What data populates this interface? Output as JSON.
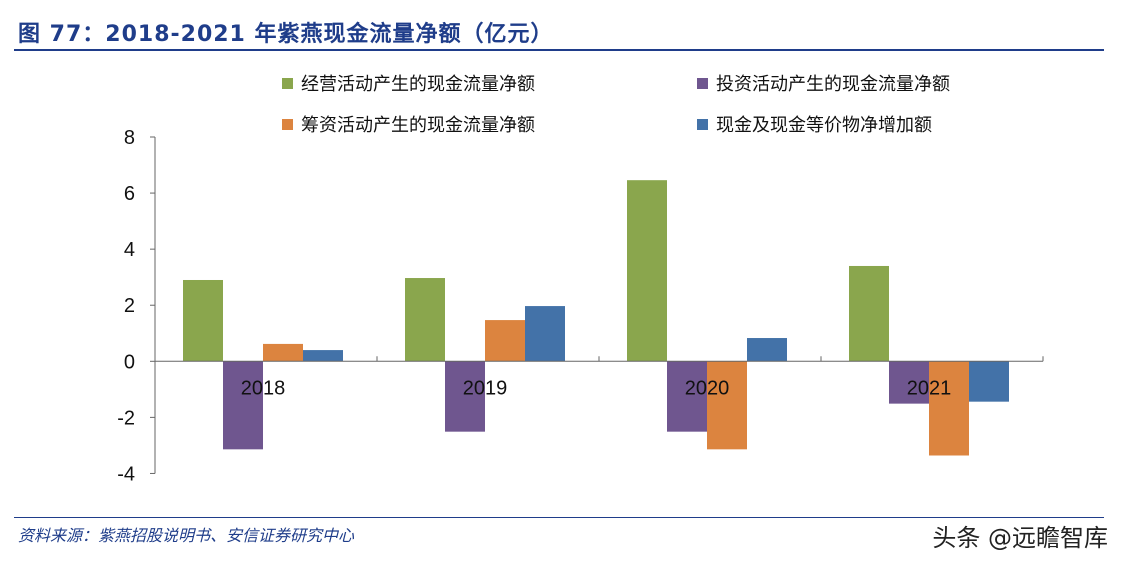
{
  "title": "图 77：2018-2021 年紫燕现金流量净额（亿元）",
  "source": "资料来源：紫燕招股说明书、安信证券研究中心",
  "watermark": "头条 @远瞻智库",
  "chart_data": {
    "type": "bar",
    "title": "图 77：2018-2021 年紫燕现金流量净额（亿元）",
    "categories": [
      "2018",
      "2019",
      "2020",
      "2021"
    ],
    "ylim": [
      -4,
      8
    ],
    "yticks": [
      -4,
      -2,
      0,
      2,
      4,
      6,
      8
    ],
    "grid": false,
    "legend_placement": "top",
    "series": [
      {
        "name": "经营活动产生的现金流量净额",
        "color": "#8aa64d",
        "values": [
          2.9,
          2.97,
          6.46,
          3.4
        ]
      },
      {
        "name": "投资活动产生的现金流量净额",
        "color": "#6f568f",
        "values": [
          -3.14,
          -2.51,
          -2.51,
          -1.51
        ]
      },
      {
        "name": "筹资活动产生的现金流量净额",
        "color": "#dc843f",
        "values": [
          0.62,
          1.47,
          -3.14,
          -3.36
        ]
      },
      {
        "name": "现金及现金等价物净增加额",
        "color": "#4372a8",
        "values": [
          0.4,
          1.97,
          0.83,
          -1.44
        ]
      }
    ]
  }
}
